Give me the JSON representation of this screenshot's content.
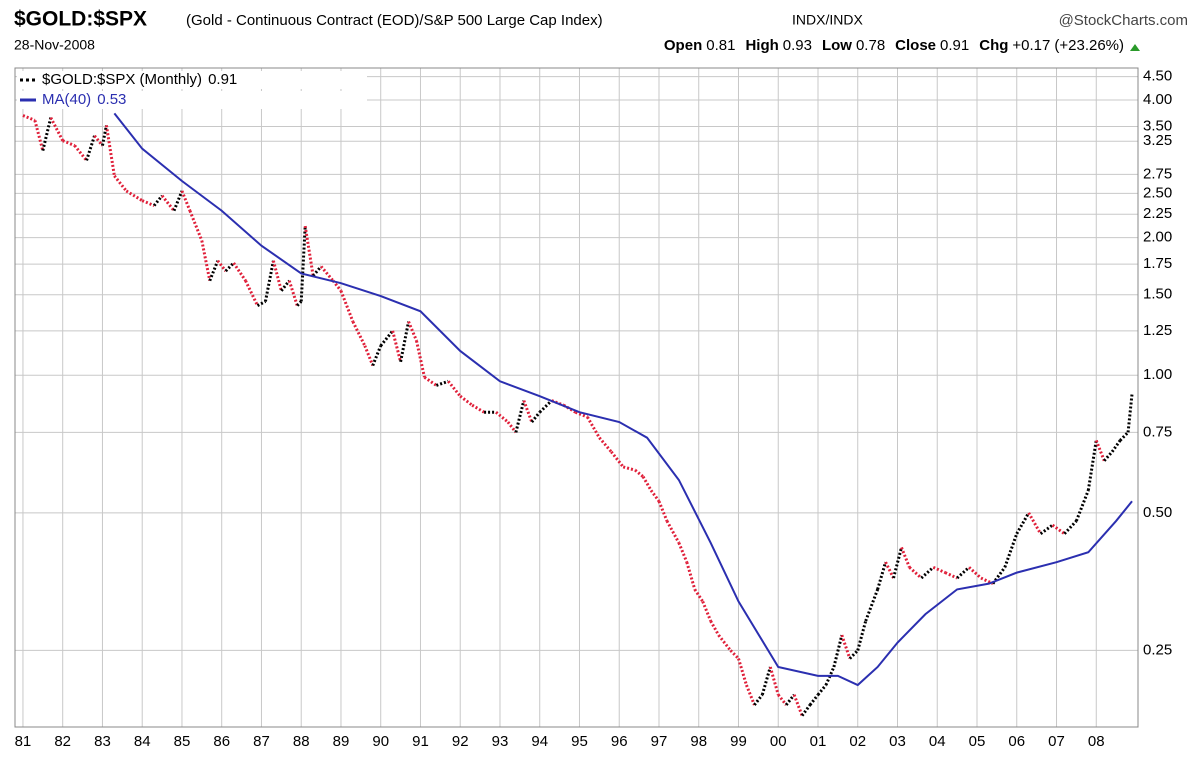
{
  "header": {
    "title": "$GOLD:$SPX",
    "subtitle": "(Gold - Continuous Contract (EOD)/S&P 500 Large Cap Index)",
    "exchange": "INDX/INDX",
    "source": "@StockCharts.com",
    "date": "28-Nov-2008",
    "quote": [
      {
        "label": "Open",
        "value": 0.81
      },
      {
        "label": "High",
        "value": 0.93
      },
      {
        "label": "Low",
        "value": 0.78
      },
      {
        "label": "Close",
        "value": 0.91
      }
    ],
    "change_label": "Chg",
    "change": "+0.17",
    "change_pct": "(+23.26%)"
  },
  "chart_data": {
    "type": "line",
    "log_scale": true,
    "grid": true,
    "legend": "top-left",
    "xlim": [
      1980.8,
      2009.05
    ],
    "ylim": [
      0.17,
      4.7
    ],
    "xticks": [
      {
        "value": 1981,
        "label": "81"
      },
      {
        "value": 1982,
        "label": "82"
      },
      {
        "value": 1983,
        "label": "83"
      },
      {
        "value": 1984,
        "label": "84"
      },
      {
        "value": 1985,
        "label": "85"
      },
      {
        "value": 1986,
        "label": "86"
      },
      {
        "value": 1987,
        "label": "87"
      },
      {
        "value": 1988,
        "label": "88"
      },
      {
        "value": 1989,
        "label": "89"
      },
      {
        "value": 1990,
        "label": "90"
      },
      {
        "value": 1991,
        "label": "91"
      },
      {
        "value": 1992,
        "label": "92"
      },
      {
        "value": 1993,
        "label": "93"
      },
      {
        "value": 1994,
        "label": "94"
      },
      {
        "value": 1995,
        "label": "95"
      },
      {
        "value": 1996,
        "label": "96"
      },
      {
        "value": 1997,
        "label": "97"
      },
      {
        "value": 1998,
        "label": "98"
      },
      {
        "value": 1999,
        "label": "99"
      },
      {
        "value": 2000,
        "label": "00"
      },
      {
        "value": 2001,
        "label": "01"
      },
      {
        "value": 2002,
        "label": "02"
      },
      {
        "value": 2003,
        "label": "03"
      },
      {
        "value": 2004,
        "label": "04"
      },
      {
        "value": 2005,
        "label": "05"
      },
      {
        "value": 2006,
        "label": "06"
      },
      {
        "value": 2007,
        "label": "07"
      },
      {
        "value": 2008,
        "label": "08"
      }
    ],
    "yticks": [
      {
        "value": 4.5,
        "label": "4.50"
      },
      {
        "value": 4,
        "label": "4.00"
      },
      {
        "value": 3.5,
        "label": "3.50"
      },
      3.25,
      2.75,
      {
        "value": 2.5,
        "label": "2.50"
      },
      2.25,
      {
        "value": 2,
        "label": "2.00"
      },
      1.75,
      {
        "value": 1.5,
        "label": "1.50"
      },
      1.25,
      {
        "value": 1,
        "label": "1.00"
      },
      0.75,
      {
        "value": 0.5,
        "label": "0.50"
      },
      0.25
    ],
    "series": [
      {
        "name": "$GOLD:$SPX (Monthly)",
        "color": "#000000",
        "down_color": "#e0203a",
        "style": "dotted",
        "x": [
          1981.0,
          1981.3,
          1981.5,
          1981.7,
          1982.0,
          1982.3,
          1982.6,
          1982.8,
          1983.0,
          1983.1,
          1983.3,
          1983.6,
          1984.0,
          1984.3,
          1984.5,
          1984.8,
          1985.0,
          1985.2,
          1985.5,
          1985.7,
          1985.9,
          1986.1,
          1986.3,
          1986.6,
          1986.9,
          1987.1,
          1987.3,
          1987.5,
          1987.7,
          1987.9,
          1988.0,
          1988.1,
          1988.3,
          1988.5,
          1988.8,
          1989.0,
          1989.3,
          1989.6,
          1989.8,
          1990.0,
          1990.3,
          1990.5,
          1990.7,
          1990.9,
          1991.1,
          1991.4,
          1991.7,
          1992.0,
          1992.3,
          1992.6,
          1992.9,
          1993.2,
          1993.4,
          1993.6,
          1993.8,
          1994.0,
          1994.3,
          1994.6,
          1994.9,
          1995.2,
          1995.5,
          1995.8,
          1996.1,
          1996.4,
          1996.6,
          1996.8,
          1997.0,
          1997.2,
          1997.5,
          1997.7,
          1997.9,
          1998.1,
          1998.3,
          1998.5,
          1998.8,
          1999.0,
          1999.2,
          1999.4,
          1999.6,
          1999.8,
          2000.0,
          2000.2,
          2000.4,
          2000.6,
          2000.8,
          2001.0,
          2001.2,
          2001.4,
          2001.6,
          2001.8,
          2002.0,
          2002.2,
          2002.5,
          2002.7,
          2002.9,
          2003.1,
          2003.3,
          2003.6,
          2003.9,
          2004.2,
          2004.5,
          2004.8,
          2005.1,
          2005.4,
          2005.7,
          2006.0,
          2006.3,
          2006.6,
          2006.9,
          2007.2,
          2007.5,
          2007.8,
          2008.0,
          2008.2,
          2008.4,
          2008.6,
          2008.8,
          2008.9
        ],
        "values": [
          3.7,
          3.61,
          3.1,
          3.66,
          3.26,
          3.18,
          2.95,
          3.34,
          3.18,
          3.52,
          2.73,
          2.53,
          2.41,
          2.35,
          2.47,
          2.29,
          2.53,
          2.29,
          1.97,
          1.61,
          1.78,
          1.69,
          1.76,
          1.61,
          1.42,
          1.45,
          1.78,
          1.53,
          1.61,
          1.42,
          1.45,
          2.12,
          1.65,
          1.73,
          1.61,
          1.53,
          1.31,
          1.16,
          1.05,
          1.16,
          1.25,
          1.07,
          1.31,
          1.19,
          0.99,
          0.95,
          0.97,
          0.9,
          0.86,
          0.83,
          0.83,
          0.79,
          0.75,
          0.88,
          0.79,
          0.83,
          0.88,
          0.86,
          0.83,
          0.81,
          0.73,
          0.68,
          0.63,
          0.62,
          0.6,
          0.56,
          0.53,
          0.48,
          0.43,
          0.39,
          0.34,
          0.32,
          0.29,
          0.27,
          0.25,
          0.24,
          0.21,
          0.19,
          0.2,
          0.23,
          0.2,
          0.19,
          0.2,
          0.18,
          0.19,
          0.2,
          0.21,
          0.23,
          0.27,
          0.24,
          0.25,
          0.29,
          0.34,
          0.39,
          0.36,
          0.42,
          0.38,
          0.36,
          0.38,
          0.37,
          0.36,
          0.38,
          0.36,
          0.35,
          0.38,
          0.45,
          0.5,
          0.45,
          0.47,
          0.45,
          0.48,
          0.56,
          0.72,
          0.65,
          0.68,
          0.72,
          0.75,
          0.91
        ]
      },
      {
        "name": "MA(40)",
        "color": "#2b2fb0",
        "style": "solid",
        "x": [
          1983.3,
          1984.0,
          1985.0,
          1986.0,
          1987.0,
          1988.0,
          1989.0,
          1990.0,
          1991.0,
          1992.0,
          1993.0,
          1994.0,
          1995.0,
          1996.0,
          1996.7,
          1997.5,
          1998.3,
          1999.0,
          2000.0,
          2001.0,
          2001.5,
          2002.0,
          2002.5,
          2003.0,
          2003.7,
          2004.5,
          2005.3,
          2006.0,
          2007.0,
          2007.8,
          2008.5,
          2008.9
        ],
        "values": [
          3.74,
          3.13,
          2.66,
          2.29,
          1.92,
          1.67,
          1.59,
          1.49,
          1.38,
          1.13,
          0.97,
          0.9,
          0.83,
          0.79,
          0.73,
          0.59,
          0.43,
          0.32,
          0.23,
          0.22,
          0.22,
          0.21,
          0.23,
          0.26,
          0.3,
          0.34,
          0.35,
          0.37,
          0.39,
          0.41,
          0.48,
          0.53
        ]
      }
    ]
  }
}
